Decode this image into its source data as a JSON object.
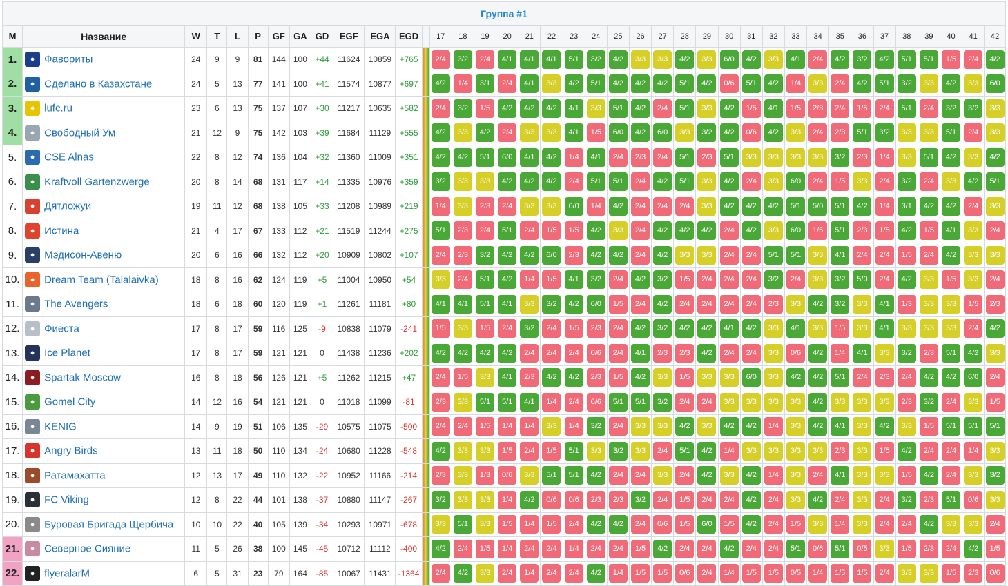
{
  "title": "Группа #1",
  "headers": {
    "pos": "M",
    "name": "Название",
    "w": "W",
    "t": "T",
    "l": "L",
    "p": "P",
    "gf": "GF",
    "ga": "GA",
    "gd": "GD",
    "egf": "EGF",
    "ega": "EGA",
    "egd": "EGD"
  },
  "rounds": [
    "17",
    "18",
    "19",
    "20",
    "21",
    "22",
    "23",
    "24",
    "25",
    "26",
    "27",
    "28",
    "29",
    "30",
    "31",
    "32",
    "33",
    "34",
    "35",
    "36",
    "37",
    "38",
    "39",
    "40",
    "41",
    "42"
  ],
  "colors": {
    "win": "#4aa936",
    "draw": "#d6cf28",
    "loss": "#f06a78",
    "qualify": "#9fdfa3",
    "drop": "#f2a3c4",
    "link": "#1d6fb8"
  },
  "teams": [
    {
      "pos": "1.",
      "zone": "q",
      "name": "Фавориты",
      "logo_color": "#1b3e8c",
      "w": "24",
      "t": "9",
      "l": "9",
      "p": "81",
      "gf": "144",
      "ga": "100",
      "gd": "+44",
      "egf": "11624",
      "ega": "10859",
      "egd": "+765",
      "results": [
        "2/4",
        "3/2",
        "2/4",
        "4/1",
        "4/1",
        "4/1",
        "5/1",
        "3/2",
        "4/2",
        "3/3",
        "3/3",
        "4/2",
        "3/3",
        "6/0",
        "4/2",
        "3/3",
        "4/1",
        "2/4",
        "4/2",
        "3/2",
        "4/2",
        "5/1",
        "5/1",
        "1/5",
        "2/4",
        "4/2"
      ]
    },
    {
      "pos": "2.",
      "zone": "q",
      "name": "Сделано в Казахстане",
      "logo_color": "#1f5fa3",
      "w": "24",
      "t": "5",
      "l": "13",
      "p": "77",
      "gf": "141",
      "ga": "100",
      "gd": "+41",
      "egf": "11574",
      "ega": "10877",
      "egd": "+697",
      "results": [
        "4/2",
        "1/4",
        "3/1",
        "2/4",
        "4/1",
        "3/3",
        "4/2",
        "5/1",
        "4/2",
        "4/2",
        "4/2",
        "5/1",
        "4/2",
        "0/6",
        "5/1",
        "4/2",
        "1/4",
        "3/3",
        "2/4",
        "4/2",
        "5/1",
        "3/2",
        "3/3",
        "4/2",
        "3/3",
        "6/0"
      ]
    },
    {
      "pos": "3.",
      "zone": "q",
      "name": "lufc.ru",
      "logo_color": "#e8c400",
      "w": "23",
      "t": "6",
      "l": "13",
      "p": "75",
      "gf": "137",
      "ga": "107",
      "gd": "+30",
      "egf": "11217",
      "ega": "10635",
      "egd": "+582",
      "results": [
        "2/4",
        "3/2",
        "1/5",
        "4/2",
        "4/2",
        "4/2",
        "4/1",
        "3/3",
        "5/1",
        "4/2",
        "2/4",
        "5/1",
        "3/3",
        "4/2",
        "1/5",
        "4/1",
        "1/5",
        "2/3",
        "2/4",
        "1/5",
        "2/4",
        "5/1",
        "2/4",
        "3/2",
        "3/2",
        "3/3"
      ]
    },
    {
      "pos": "4.",
      "zone": "q",
      "name": "Свободный Ум",
      "logo_color": "#9aa7b0",
      "w": "21",
      "t": "12",
      "l": "9",
      "p": "75",
      "gf": "142",
      "ga": "103",
      "gd": "+39",
      "egf": "11684",
      "ega": "11129",
      "egd": "+555",
      "results": [
        "4/2",
        "3/3",
        "4/2",
        "2/4",
        "3/3",
        "3/3",
        "4/1",
        "1/5",
        "6/0",
        "4/2",
        "6/0",
        "3/3",
        "3/2",
        "4/2",
        "0/6",
        "4/2",
        "3/3",
        "2/4",
        "2/3",
        "5/1",
        "3/2",
        "3/3",
        "3/3",
        "5/1",
        "2/4",
        "3/3"
      ]
    },
    {
      "pos": "5.",
      "zone": "",
      "name": "CSE Alnas",
      "logo_color": "#2b6cb0",
      "w": "22",
      "t": "8",
      "l": "12",
      "p": "74",
      "gf": "136",
      "ga": "104",
      "gd": "+32",
      "egf": "11360",
      "ega": "11009",
      "egd": "+351",
      "results": [
        "4/2",
        "4/2",
        "5/1",
        "6/0",
        "4/1",
        "4/2",
        "1/4",
        "4/1",
        "2/4",
        "2/3",
        "2/4",
        "5/1",
        "2/3",
        "5/1",
        "3/3",
        "3/3",
        "3/3",
        "3/3",
        "3/2",
        "2/3",
        "1/4",
        "3/3",
        "5/1",
        "4/2",
        "3/3",
        "4/2"
      ]
    },
    {
      "pos": "6.",
      "zone": "",
      "name": "Kraftvoll Gartenzwerge",
      "logo_color": "#3a8f4a",
      "w": "20",
      "t": "8",
      "l": "14",
      "p": "68",
      "gf": "131",
      "ga": "117",
      "gd": "+14",
      "egf": "11335",
      "ega": "10976",
      "egd": "+359",
      "results": [
        "3/2",
        "3/3",
        "3/3",
        "4/2",
        "4/2",
        "4/2",
        "2/4",
        "5/1",
        "5/1",
        "2/4",
        "4/2",
        "5/1",
        "3/3",
        "4/2",
        "2/4",
        "3/3",
        "6/0",
        "2/4",
        "1/5",
        "3/3",
        "2/4",
        "3/2",
        "2/4",
        "3/3",
        "4/2",
        "5/1"
      ]
    },
    {
      "pos": "7.",
      "zone": "",
      "name": "Дятложуи",
      "logo_color": "#d8402f",
      "w": "19",
      "t": "11",
      "l": "12",
      "p": "68",
      "gf": "138",
      "ga": "105",
      "gd": "+33",
      "egf": "11208",
      "ega": "10989",
      "egd": "+219",
      "results": [
        "1/4",
        "3/3",
        "2/3",
        "2/4",
        "3/3",
        "3/3",
        "6/0",
        "1/4",
        "4/2",
        "2/4",
        "2/4",
        "2/4",
        "3/3",
        "4/2",
        "4/2",
        "4/2",
        "5/1",
        "5/0",
        "5/1",
        "4/2",
        "1/4",
        "3/1",
        "4/2",
        "4/2",
        "2/4",
        "3/3"
      ]
    },
    {
      "pos": "8.",
      "zone": "",
      "name": "Истина",
      "logo_color": "#e0432d",
      "w": "21",
      "t": "4",
      "l": "17",
      "p": "67",
      "gf": "133",
      "ga": "112",
      "gd": "+21",
      "egf": "11519",
      "ega": "11244",
      "egd": "+275",
      "results": [
        "5/1",
        "2/3",
        "2/4",
        "5/1",
        "2/4",
        "1/5",
        "1/5",
        "4/2",
        "3/3",
        "2/4",
        "4/2",
        "4/2",
        "4/2",
        "2/4",
        "4/2",
        "3/3",
        "6/0",
        "1/5",
        "5/1",
        "2/3",
        "1/5",
        "4/2",
        "1/5",
        "4/1",
        "3/3",
        "2/4"
      ]
    },
    {
      "pos": "9.",
      "zone": "",
      "name": "Мэдисон-Авеню",
      "logo_color": "#2a3f66",
      "w": "20",
      "t": "6",
      "l": "16",
      "p": "66",
      "gf": "132",
      "ga": "112",
      "gd": "+20",
      "egf": "10909",
      "ega": "10802",
      "egd": "+107",
      "results": [
        "2/4",
        "2/3",
        "3/2",
        "4/2",
        "4/2",
        "6/0",
        "2/3",
        "4/2",
        "4/2",
        "2/4",
        "4/2",
        "3/3",
        "3/3",
        "2/4",
        "2/4",
        "5/1",
        "5/1",
        "3/3",
        "4/1",
        "2/4",
        "2/4",
        "1/5",
        "2/4",
        "4/2",
        "3/3",
        "3/3"
      ]
    },
    {
      "pos": "10.",
      "zone": "",
      "name": "Dream Team (Talalaivka)",
      "logo_color": "#e8642a",
      "w": "18",
      "t": "8",
      "l": "16",
      "p": "62",
      "gf": "124",
      "ga": "119",
      "gd": "+5",
      "egf": "11004",
      "ega": "10950",
      "egd": "+54",
      "results": [
        "3/3",
        "2/4",
        "5/1",
        "4/2",
        "1/4",
        "1/5",
        "4/1",
        "3/2",
        "2/4",
        "4/2",
        "3/2",
        "1/5",
        "2/4",
        "2/4",
        "2/4",
        "3/2",
        "2/4",
        "3/3",
        "3/2",
        "5/0",
        "2/4",
        "4/2",
        "3/3",
        "1/5",
        "3/3",
        "2/4"
      ]
    },
    {
      "pos": "11.",
      "zone": "",
      "name": "The Avengers",
      "logo_color": "#6b7a8a",
      "w": "18",
      "t": "6",
      "l": "18",
      "p": "60",
      "gf": "120",
      "ga": "119",
      "gd": "+1",
      "egf": "11261",
      "ega": "11181",
      "egd": "+80",
      "results": [
        "4/1",
        "4/1",
        "5/1",
        "4/1",
        "3/3",
        "3/2",
        "4/2",
        "6/0",
        "1/5",
        "2/4",
        "4/2",
        "2/4",
        "2/4",
        "2/4",
        "2/4",
        "2/3",
        "3/3",
        "4/2",
        "3/2",
        "3/3",
        "4/1",
        "1/3",
        "3/3",
        "3/3",
        "1/5",
        "2/3"
      ]
    },
    {
      "pos": "12.",
      "zone": "",
      "name": "Фиеста",
      "logo_color": "#b7c0c8",
      "w": "17",
      "t": "8",
      "l": "17",
      "p": "59",
      "gf": "116",
      "ga": "125",
      "gd": "-9",
      "egf": "10838",
      "ega": "11079",
      "egd": "-241",
      "results": [
        "1/5",
        "3/3",
        "1/5",
        "2/4",
        "3/2",
        "2/4",
        "1/5",
        "2/3",
        "2/4",
        "4/2",
        "3/2",
        "4/2",
        "4/2",
        "4/1",
        "4/2",
        "3/3",
        "4/1",
        "3/3",
        "1/5",
        "3/3",
        "4/1",
        "3/3",
        "3/3",
        "3/3",
        "2/4",
        "4/2"
      ]
    },
    {
      "pos": "13.",
      "zone": "",
      "name": "Ice Planet",
      "logo_color": "#23335a",
      "w": "17",
      "t": "8",
      "l": "17",
      "p": "59",
      "gf": "121",
      "ga": "121",
      "gd": "0",
      "egf": "11438",
      "ega": "11236",
      "egd": "+202",
      "results": [
        "4/2",
        "4/2",
        "4/2",
        "4/2",
        "2/4",
        "2/4",
        "2/4",
        "0/6",
        "2/4",
        "4/1",
        "2/3",
        "2/3",
        "4/2",
        "2/4",
        "2/4",
        "3/3",
        "0/6",
        "4/2",
        "1/4",
        "4/1",
        "3/3",
        "3/2",
        "2/3",
        "5/1",
        "4/2",
        "3/3"
      ]
    },
    {
      "pos": "14.",
      "zone": "",
      "name": "Spartak Moscow",
      "logo_color": "#8a1c22",
      "w": "16",
      "t": "8",
      "l": "18",
      "p": "56",
      "gf": "126",
      "ga": "121",
      "gd": "+5",
      "egf": "11262",
      "ega": "11215",
      "egd": "+47",
      "results": [
        "2/4",
        "1/5",
        "3/3",
        "4/1",
        "2/3",
        "4/2",
        "4/2",
        "2/3",
        "1/5",
        "4/2",
        "3/3",
        "1/5",
        "3/3",
        "3/3",
        "6/0",
        "3/3",
        "4/2",
        "4/2",
        "5/1",
        "2/4",
        "2/3",
        "2/4",
        "4/2",
        "4/2",
        "6/0",
        "2/4"
      ]
    },
    {
      "pos": "15.",
      "zone": "",
      "name": "Gomel City",
      "logo_color": "#4a9a3e",
      "w": "14",
      "t": "12",
      "l": "16",
      "p": "54",
      "gf": "121",
      "ga": "121",
      "gd": "0",
      "egf": "11018",
      "ega": "11099",
      "egd": "-81",
      "results": [
        "2/3",
        "3/3",
        "5/1",
        "5/1",
        "4/1",
        "1/4",
        "2/4",
        "0/6",
        "5/1",
        "5/1",
        "3/2",
        "2/4",
        "2/4",
        "3/3",
        "3/3",
        "3/3",
        "3/3",
        "4/2",
        "3/3",
        "3/3",
        "3/3",
        "2/3",
        "3/2",
        "2/4",
        "3/3",
        "1/5"
      ]
    },
    {
      "pos": "16.",
      "zone": "",
      "name": "KENIG",
      "logo_color": "#7a8694",
      "w": "14",
      "t": "9",
      "l": "19",
      "p": "51",
      "gf": "106",
      "ga": "135",
      "gd": "-29",
      "egf": "10575",
      "ega": "11075",
      "egd": "-500",
      "results": [
        "2/4",
        "2/4",
        "1/5",
        "1/4",
        "1/4",
        "3/3",
        "1/4",
        "3/2",
        "2/4",
        "3/3",
        "3/3",
        "4/2",
        "3/3",
        "4/2",
        "4/2",
        "1/4",
        "3/3",
        "4/2",
        "4/1",
        "3/3",
        "4/2",
        "3/3",
        "1/5",
        "5/1",
        "5/1",
        "5/1"
      ]
    },
    {
      "pos": "17.",
      "zone": "",
      "name": "Angry Birds",
      "logo_color": "#d9342b",
      "w": "13",
      "t": "11",
      "l": "18",
      "p": "50",
      "gf": "110",
      "ga": "134",
      "gd": "-24",
      "egf": "10680",
      "ega": "11228",
      "egd": "-548",
      "results": [
        "4/2",
        "3/3",
        "3/3",
        "1/5",
        "2/4",
        "1/5",
        "5/1",
        "3/3",
        "3/2",
        "3/3",
        "2/4",
        "5/1",
        "4/2",
        "1/4",
        "3/3",
        "3/3",
        "3/3",
        "3/3",
        "2/3",
        "3/3",
        "1/5",
        "4/2",
        "2/4",
        "2/4",
        "1/4",
        "3/3"
      ]
    },
    {
      "pos": "18.",
      "zone": "",
      "name": "Ратамахатта",
      "logo_color": "#9b4a2c",
      "w": "12",
      "t": "13",
      "l": "17",
      "p": "49",
      "gf": "110",
      "ga": "132",
      "gd": "-22",
      "egf": "10952",
      "ega": "11166",
      "egd": "-214",
      "results": [
        "2/3",
        "3/3",
        "1/3",
        "0/6",
        "3/3",
        "5/1",
        "5/1",
        "4/2",
        "2/4",
        "2/4",
        "3/3",
        "2/4",
        "4/2",
        "3/3",
        "4/2",
        "1/4",
        "3/3",
        "2/4",
        "4/1",
        "3/3",
        "3/3",
        "1/5",
        "4/2",
        "2/4",
        "3/3",
        "3/2"
      ]
    },
    {
      "pos": "19.",
      "zone": "",
      "name": "FC Viking",
      "logo_color": "#2b2f36",
      "w": "12",
      "t": "8",
      "l": "22",
      "p": "44",
      "gf": "101",
      "ga": "138",
      "gd": "-37",
      "egf": "10880",
      "ega": "11147",
      "egd": "-267",
      "results": [
        "3/2",
        "3/3",
        "3/3",
        "1/4",
        "4/2",
        "0/6",
        "0/6",
        "2/3",
        "2/3",
        "3/2",
        "2/4",
        "1/5",
        "2/4",
        "2/4",
        "4/2",
        "2/4",
        "3/3",
        "4/2",
        "2/4",
        "3/3",
        "2/4",
        "3/2",
        "2/3",
        "5/1",
        "0/6",
        "3/3"
      ]
    },
    {
      "pos": "20.",
      "zone": "",
      "name": "Буровая Бригада Щербича",
      "logo_color": "#8a8a8a",
      "w": "10",
      "t": "10",
      "l": "22",
      "p": "40",
      "gf": "105",
      "ga": "139",
      "gd": "-34",
      "egf": "10293",
      "ega": "10971",
      "egd": "-678",
      "results": [
        "3/3",
        "5/1",
        "3/3",
        "1/5",
        "1/4",
        "1/5",
        "2/4",
        "4/2",
        "4/2",
        "2/4",
        "0/6",
        "1/5",
        "6/0",
        "1/5",
        "4/2",
        "2/4",
        "1/5",
        "3/3",
        "1/4",
        "3/3",
        "2/4",
        "2/4",
        "4/2",
        "3/3",
        "3/3",
        "2/4"
      ]
    },
    {
      "pos": "21.",
      "zone": "d",
      "name": "Северное Сияние",
      "logo_color": "#c98aa0",
      "w": "11",
      "t": "5",
      "l": "26",
      "p": "38",
      "gf": "100",
      "ga": "145",
      "gd": "-45",
      "egf": "10712",
      "ega": "11112",
      "egd": "-400",
      "results": [
        "4/2",
        "2/4",
        "1/5",
        "1/4",
        "2/4",
        "2/4",
        "1/4",
        "2/4",
        "2/4",
        "1/5",
        "4/2",
        "2/4",
        "2/4",
        "4/2",
        "2/4",
        "2/4",
        "5/1",
        "0/6",
        "5/1",
        "0/5",
        "3/3",
        "1/5",
        "2/3",
        "2/4",
        "4/2",
        "1/5"
      ]
    },
    {
      "pos": "22.",
      "zone": "d",
      "name": "flyeralarM",
      "logo_color": "#222222",
      "w": "6",
      "t": "5",
      "l": "31",
      "p": "23",
      "gf": "79",
      "ga": "164",
      "gd": "-85",
      "egf": "10067",
      "ega": "11431",
      "egd": "-1364",
      "results": [
        "2/4",
        "4/2",
        "3/3",
        "2/4",
        "1/4",
        "2/4",
        "2/4",
        "4/2",
        "1/4",
        "1/5",
        "1/5",
        "0/6",
        "2/4",
        "1/4",
        "1/5",
        "1/5",
        "0/5",
        "1/4",
        "1/5",
        "1/5",
        "2/4",
        "3/3",
        "3/3",
        "1/5",
        "2/3",
        "0/6"
      ]
    }
  ]
}
